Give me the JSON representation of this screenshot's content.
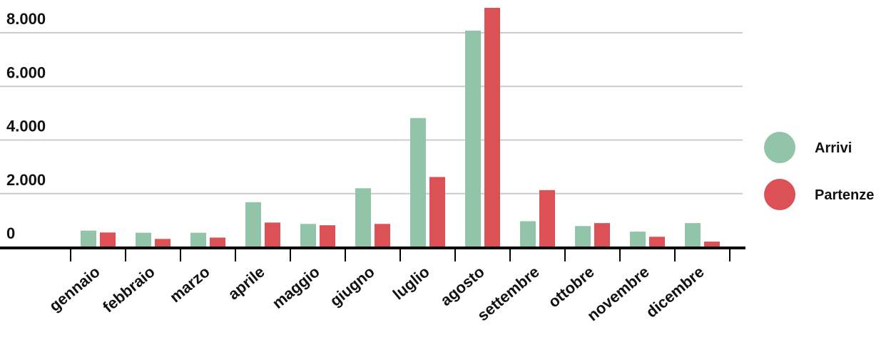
{
  "chart_data": {
    "type": "bar",
    "categories": [
      "gennaio",
      "febbraio",
      "marzo",
      "aprile",
      "maggio",
      "giugno",
      "luglio",
      "agosto",
      "settembre",
      "ottobre",
      "novembre",
      "dicembre"
    ],
    "series": [
      {
        "name": "Arrivi",
        "color": "#91c4a8",
        "values": [
          620,
          540,
          540,
          1680,
          870,
          2200,
          4820,
          8080,
          970,
          790,
          580,
          900
        ]
      },
      {
        "name": "Partenze",
        "color": "#db5155",
        "values": [
          550,
          310,
          360,
          920,
          820,
          870,
          2620,
          8930,
          2130,
          900,
          390,
          210
        ]
      }
    ],
    "y_ticks": [
      {
        "value": 0,
        "label": "0"
      },
      {
        "value": 2000,
        "label": "2.000"
      },
      {
        "value": 4000,
        "label": "4.000"
      },
      {
        "value": 6000,
        "label": "6.000"
      },
      {
        "value": 8000,
        "label": "8.000"
      }
    ],
    "ylim": [
      0,
      8900
    ],
    "grid": true,
    "grid_color": "#cccccc",
    "legend_position": "right"
  }
}
